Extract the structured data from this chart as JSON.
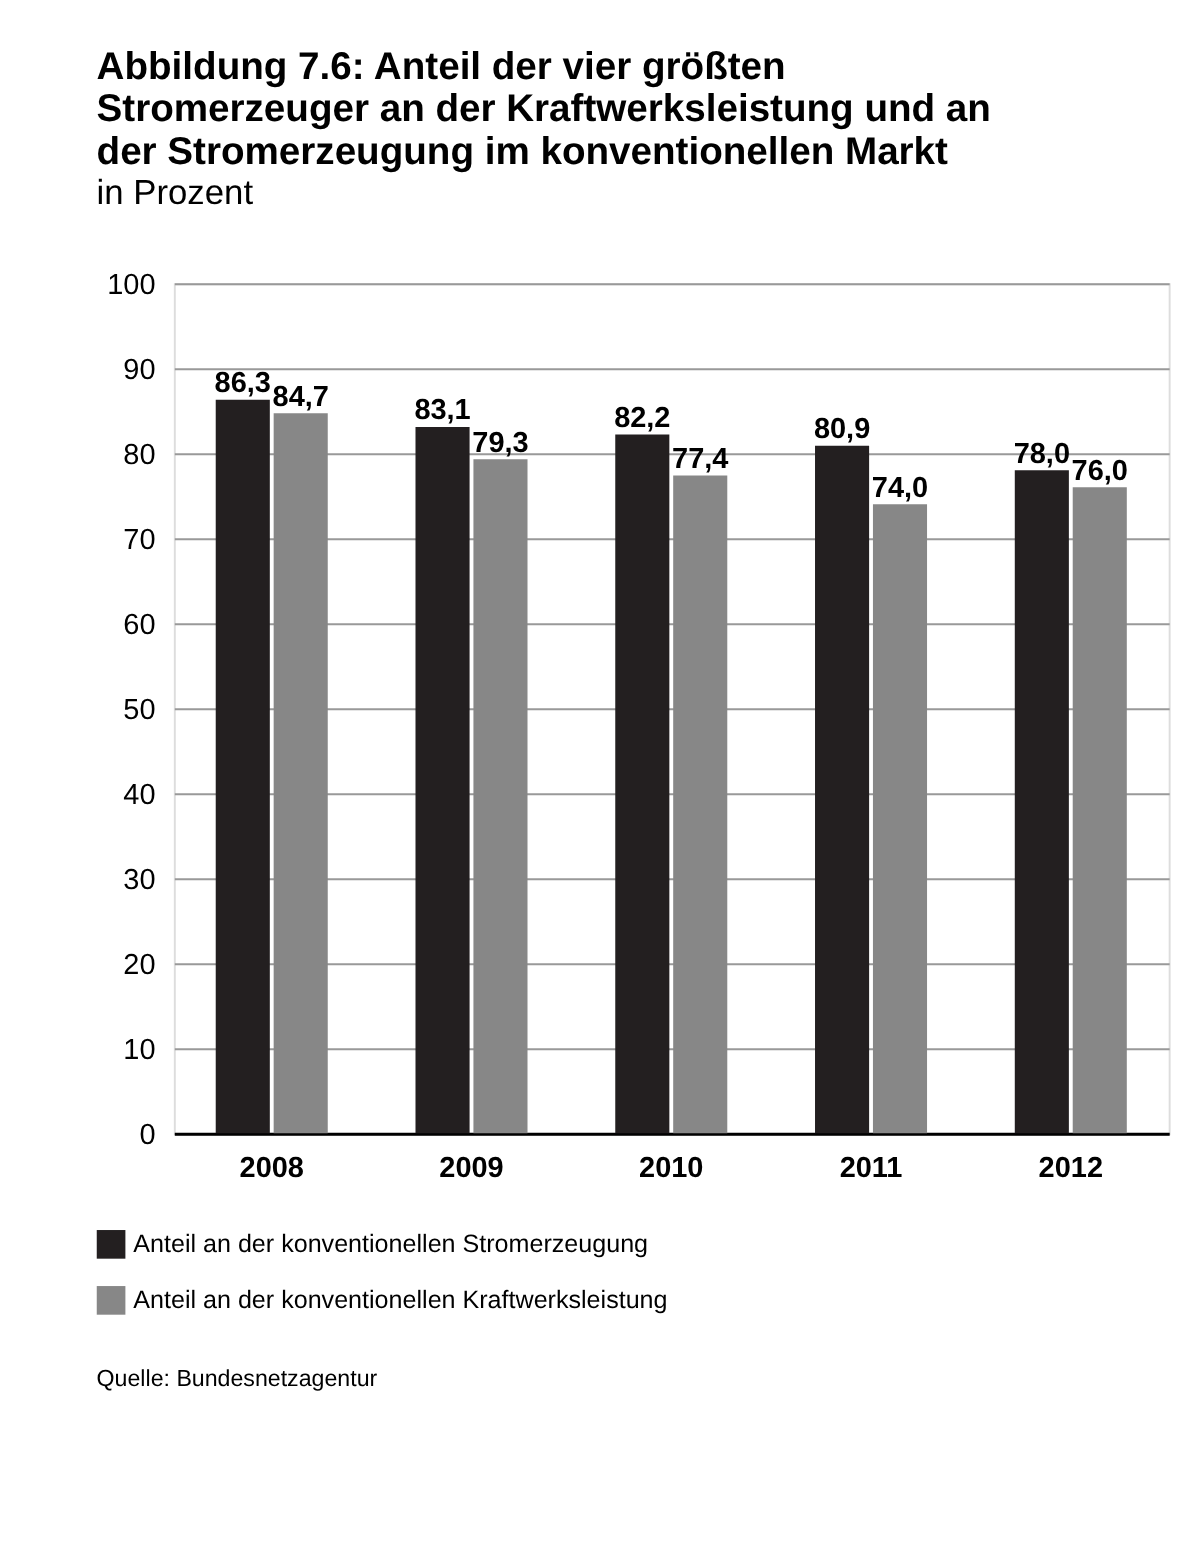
{
  "chart_data": {
    "type": "bar",
    "title": "Abbildung 7.6: Anteil der vier größten Stromerzeuger an der Kraftwerksleistung und an der Stromerzeugung im konventionellen Markt",
    "subtitle": "in Prozent",
    "categories": [
      "2008",
      "2009",
      "2010",
      "2011",
      "2012"
    ],
    "series": [
      {
        "name": "Anteil an der konventionellen Stromerzeugung",
        "color": "#231f20",
        "values": [
          86.3,
          83.1,
          82.2,
          80.9,
          78.0
        ],
        "value_labels": [
          "86,3",
          "83,1",
          "82,2",
          "80,9",
          "78,0"
        ]
      },
      {
        "name": "Anteil an der konventionellen Kraftwerksleistung",
        "color": "#878787",
        "values": [
          84.7,
          79.3,
          77.4,
          74.0,
          76.0
        ],
        "value_labels": [
          "84,7",
          "79,3",
          "77,4",
          "74,0",
          "76,0"
        ]
      }
    ],
    "ylim": [
      0,
      100
    ],
    "yticks": [
      0,
      10,
      20,
      30,
      40,
      50,
      60,
      70,
      80,
      90,
      100
    ],
    "grid": "y",
    "legend": "bottom left",
    "annotations": [
      "Quelle: Bundesnetzagentur"
    ]
  }
}
